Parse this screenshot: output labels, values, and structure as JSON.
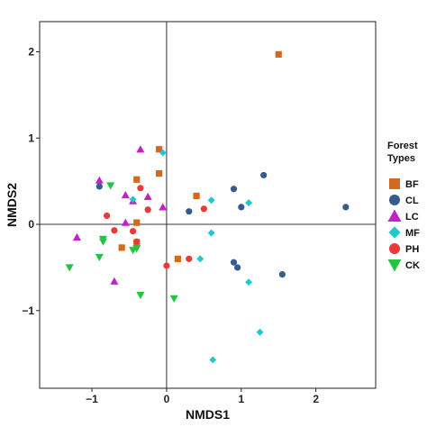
{
  "chart_data": {
    "type": "scatter",
    "title": "",
    "xlabel": "NMDS1",
    "ylabel": "NMDS2",
    "xlim": [
      -1.7,
      2.8
    ],
    "ylim": [
      -1.9,
      2.35
    ],
    "x_ticks": [
      -1,
      0,
      1,
      2
    ],
    "y_ticks": [
      -1,
      0,
      1,
      2
    ],
    "x_tick_labels": [
      "−1",
      "0",
      "1",
      "2"
    ],
    "y_tick_labels": [
      "−1",
      "0",
      "1",
      "2"
    ],
    "zero_lines": true,
    "grid": false,
    "legend": {
      "title_lines": [
        "Forest",
        "Types"
      ],
      "position": "right"
    },
    "series": [
      {
        "name": "BF",
        "marker": "square",
        "color": "#D2691E",
        "points": [
          [
            1.5,
            1.97
          ],
          [
            -0.1,
            0.87
          ],
          [
            -0.1,
            0.59
          ],
          [
            0.4,
            0.33
          ],
          [
            -0.4,
            0.52
          ],
          [
            -0.4,
            0.02
          ],
          [
            -0.6,
            -0.27
          ],
          [
            -0.4,
            -0.21
          ],
          [
            0.15,
            -0.4
          ]
        ]
      },
      {
        "name": "CL",
        "marker": "circle",
        "color": "#365C8D",
        "points": [
          [
            1.3,
            0.57
          ],
          [
            0.9,
            0.41
          ],
          [
            1.0,
            0.2
          ],
          [
            2.4,
            0.2
          ],
          [
            0.3,
            0.15
          ],
          [
            -0.9,
            0.44
          ],
          [
            0.9,
            -0.44
          ],
          [
            0.95,
            -0.5
          ],
          [
            1.55,
            -0.58
          ]
        ]
      },
      {
        "name": "LC",
        "marker": "triangle",
        "color": "#C71ECB",
        "points": [
          [
            -0.35,
            0.87
          ],
          [
            -0.9,
            0.51
          ],
          [
            -0.55,
            0.34
          ],
          [
            -0.25,
            0.32
          ],
          [
            -0.45,
            0.27
          ],
          [
            -0.05,
            0.2
          ],
          [
            -0.55,
            0.02
          ],
          [
            -1.2,
            -0.15
          ],
          [
            -0.7,
            -0.66
          ]
        ]
      },
      {
        "name": "MF",
        "marker": "diamond",
        "color": "#1FC8CF",
        "points": [
          [
            -0.05,
            0.83
          ],
          [
            0.6,
            0.28
          ],
          [
            1.1,
            0.25
          ],
          [
            -0.45,
            0.29
          ],
          [
            0.6,
            -0.1
          ],
          [
            0.45,
            -0.4
          ],
          [
            1.1,
            -0.67
          ],
          [
            1.25,
            -1.25
          ],
          [
            0.62,
            -1.57
          ]
        ]
      },
      {
        "name": "PH",
        "marker": "circle",
        "color": "#E83A3A",
        "points": [
          [
            -0.35,
            0.42
          ],
          [
            -0.25,
            0.17
          ],
          [
            0.5,
            0.18
          ],
          [
            -0.8,
            0.1
          ],
          [
            -0.7,
            -0.07
          ],
          [
            -0.45,
            -0.08
          ],
          [
            -0.4,
            -0.2
          ],
          [
            0.3,
            -0.4
          ],
          [
            0.0,
            -0.48
          ]
        ]
      },
      {
        "name": "CK",
        "marker": "triangle-down",
        "color": "#22C440",
        "points": [
          [
            -0.75,
            0.45
          ],
          [
            -0.85,
            -0.17
          ],
          [
            -0.85,
            -0.2
          ],
          [
            -0.4,
            -0.28
          ],
          [
            -0.9,
            -0.38
          ],
          [
            -1.3,
            -0.5
          ],
          [
            -0.35,
            -0.82
          ],
          [
            0.1,
            -0.86
          ],
          [
            -0.45,
            -0.3
          ]
        ]
      }
    ]
  }
}
